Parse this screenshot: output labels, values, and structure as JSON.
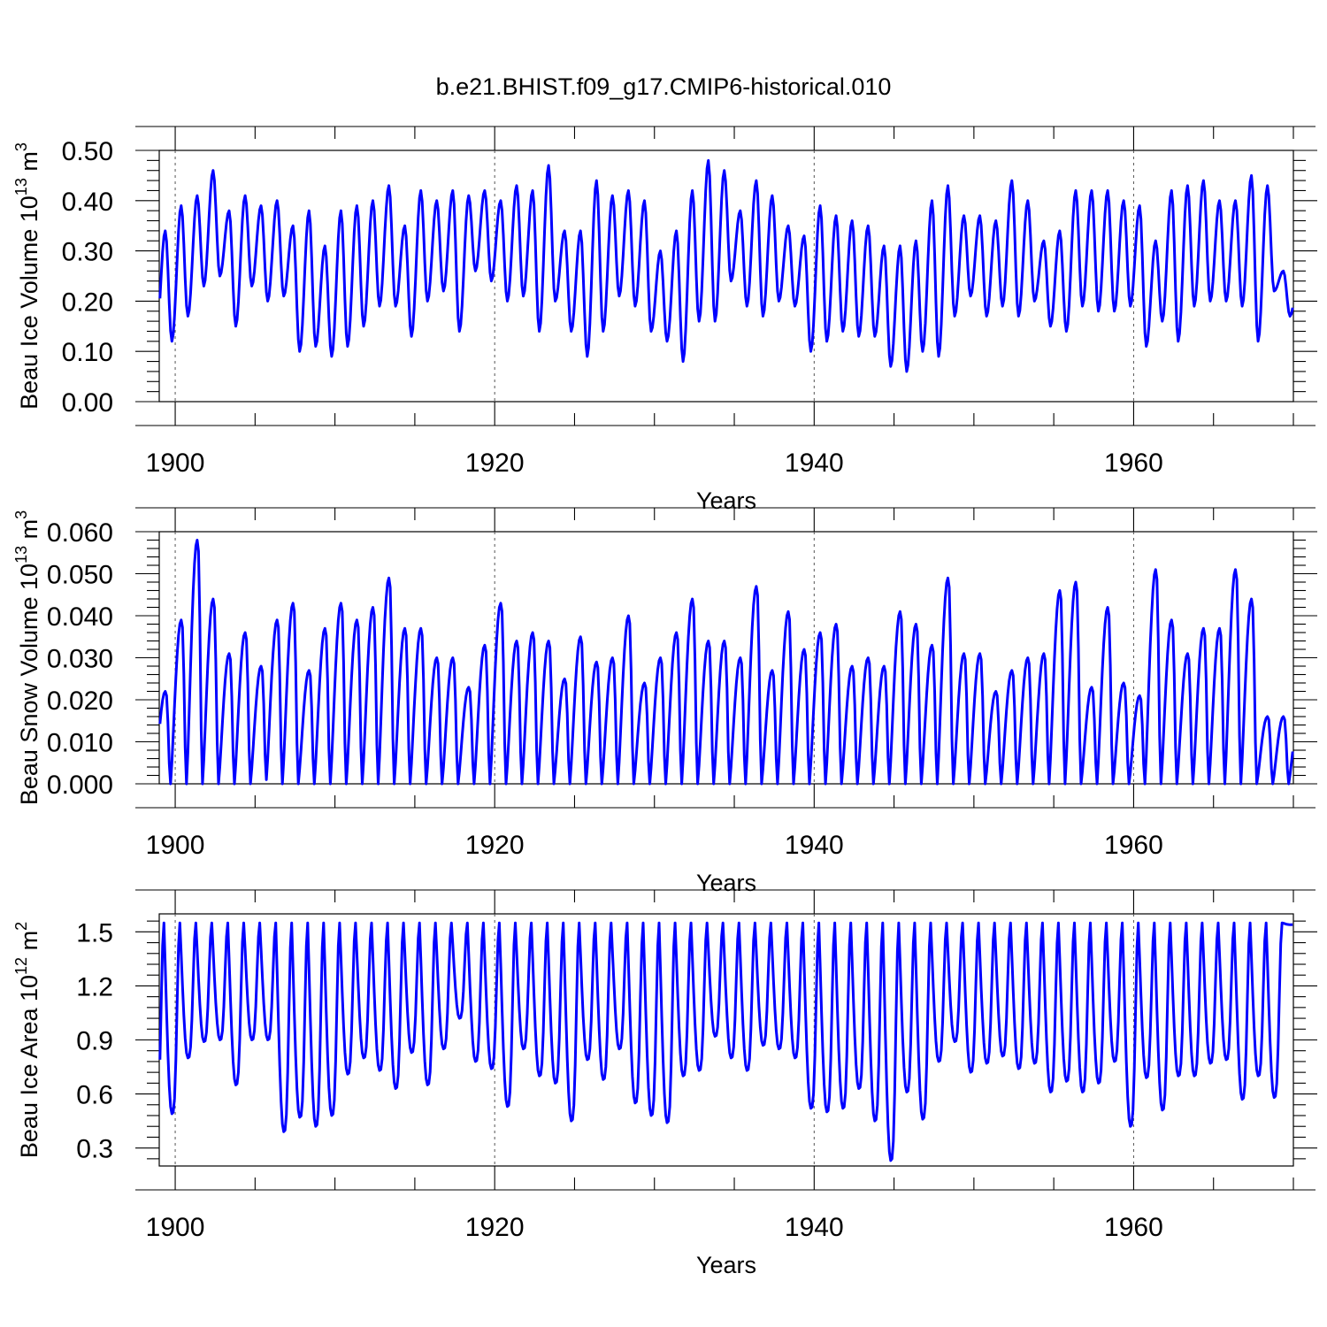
{
  "title": "b.e21.BHIST.f09_g17.CMIP6-historical.010",
  "chart_data": [
    {
      "type": "line",
      "name": "ice-volume",
      "ylabel": "Beau Ice Volume 10",
      "ylabel_exp": "13",
      "ylabel_unit": "m",
      "ylabel_unit_exp": "3",
      "xlabel": "Years",
      "xlim": [
        1899.0,
        1970.0
      ],
      "ylim": [
        0.0,
        0.5
      ],
      "xticks": [
        "1900",
        "1920",
        "1940",
        "1960"
      ],
      "yticks": [
        "0.00",
        "0.10",
        "0.20",
        "0.30",
        "0.40",
        "0.50"
      ],
      "series": [
        {
          "name": "Beau Ice Volume",
          "color": "#0000ff",
          "seasonal": {
            "max_month": 4,
            "min_month": 9,
            "shape": 1.0
          },
          "yearly_min": [
            0.12,
            0.17,
            0.23,
            0.25,
            0.15,
            0.23,
            0.2,
            0.21,
            0.1,
            0.11,
            0.09,
            0.11,
            0.15,
            0.19,
            0.19,
            0.13,
            0.2,
            0.22,
            0.14,
            0.26,
            0.24,
            0.2,
            0.21,
            0.14,
            0.2,
            0.14,
            0.09,
            0.14,
            0.21,
            0.19,
            0.14,
            0.12,
            0.08,
            0.16,
            0.16,
            0.24,
            0.19,
            0.17,
            0.2,
            0.19,
            0.1,
            0.12,
            0.14,
            0.13,
            0.13,
            0.07,
            0.06,
            0.1,
            0.09,
            0.17,
            0.21,
            0.17,
            0.19,
            0.17,
            0.2,
            0.15,
            0.14,
            0.19,
            0.18,
            0.18,
            0.19,
            0.11,
            0.16,
            0.12,
            0.19,
            0.2,
            0.2,
            0.19,
            0.12,
            0.22,
            0.17
          ],
          "yearly_max": [
            0.34,
            0.39,
            0.41,
            0.46,
            0.38,
            0.41,
            0.39,
            0.4,
            0.35,
            0.38,
            0.31,
            0.38,
            0.39,
            0.4,
            0.43,
            0.35,
            0.42,
            0.4,
            0.42,
            0.41,
            0.42,
            0.4,
            0.43,
            0.42,
            0.47,
            0.34,
            0.34,
            0.44,
            0.41,
            0.42,
            0.4,
            0.3,
            0.34,
            0.42,
            0.48,
            0.46,
            0.38,
            0.44,
            0.41,
            0.35,
            0.33,
            0.39,
            0.37,
            0.36,
            0.35,
            0.31,
            0.31,
            0.32,
            0.4,
            0.43,
            0.37,
            0.37,
            0.36,
            0.44,
            0.4,
            0.32,
            0.34,
            0.42,
            0.42,
            0.42,
            0.4,
            0.39,
            0.32,
            0.42,
            0.43,
            0.44,
            0.4,
            0.4,
            0.45,
            0.43,
            0.26
          ]
        }
      ]
    },
    {
      "type": "line",
      "name": "snow-volume",
      "ylabel": "Beau Snow Volume 10",
      "ylabel_exp": "13",
      "ylabel_unit": "m",
      "ylabel_unit_exp": "3",
      "xlabel": "Years",
      "xlim": [
        1899.0,
        1970.0
      ],
      "ylim": [
        0.0,
        0.06
      ],
      "xticks": [
        "1900",
        "1920",
        "1940",
        "1960"
      ],
      "yticks": [
        "0.000",
        "0.010",
        "0.020",
        "0.030",
        "0.040",
        "0.050",
        "0.060"
      ],
      "series": [
        {
          "name": "Beau Snow Volume",
          "color": "#0000ff",
          "seasonal": {
            "max_month": 4,
            "min_month": 8,
            "shape": 1.6
          },
          "yearly_min": [
            0.0,
            0.0,
            0.0,
            0.0,
            0.0,
            0.0,
            0.001,
            0.0,
            0.0,
            0.0,
            0.0,
            0.0,
            0.0,
            0.0,
            0.0,
            0.0,
            0.0,
            0.0,
            0.0,
            0.0,
            0.0,
            0.0,
            0.0,
            0.0,
            0.0,
            0.0,
            0.0,
            0.0,
            0.0,
            0.0,
            0.0,
            0.0,
            0.0,
            0.0,
            0.0,
            0.0,
            0.0,
            0.0,
            0.0,
            0.0,
            0.0,
            0.0,
            0.0,
            0.0,
            0.0,
            0.0,
            0.0,
            0.0,
            0.0,
            0.0,
            0.0,
            0.0,
            0.0,
            0.0,
            0.0,
            0.0,
            0.0,
            0.0,
            0.0,
            0.0,
            0.0,
            0.0,
            0.0,
            0.0,
            0.0,
            0.0,
            0.0,
            0.0,
            0.0,
            0.0,
            0.0
          ],
          "yearly_max": [
            0.022,
            0.039,
            0.058,
            0.044,
            0.031,
            0.036,
            0.028,
            0.039,
            0.043,
            0.027,
            0.037,
            0.043,
            0.039,
            0.042,
            0.049,
            0.037,
            0.037,
            0.03,
            0.03,
            0.023,
            0.033,
            0.043,
            0.034,
            0.036,
            0.034,
            0.025,
            0.035,
            0.029,
            0.03,
            0.04,
            0.024,
            0.03,
            0.036,
            0.044,
            0.034,
            0.034,
            0.03,
            0.047,
            0.027,
            0.041,
            0.032,
            0.036,
            0.038,
            0.028,
            0.03,
            0.028,
            0.041,
            0.038,
            0.033,
            0.049,
            0.031,
            0.031,
            0.022,
            0.027,
            0.03,
            0.031,
            0.046,
            0.048,
            0.023,
            0.042,
            0.024,
            0.021,
            0.051,
            0.039,
            0.031,
            0.037,
            0.037,
            0.051,
            0.044,
            0.016,
            0.016
          ]
        }
      ]
    },
    {
      "type": "line",
      "name": "ice-area",
      "ylabel": "Beau Ice Area 10",
      "ylabel_exp": "12",
      "ylabel_unit": "m",
      "ylabel_unit_exp": "2",
      "xlabel": "Years",
      "xlim": [
        1899.0,
        1970.0
      ],
      "ylim": [
        0.2,
        1.6
      ],
      "xticks": [
        "1900",
        "1920",
        "1940",
        "1960"
      ],
      "yticks": [
        "0.3",
        "0.6",
        "0.9",
        "1.2",
        "1.5"
      ],
      "series": [
        {
          "name": "Beau Ice Area",
          "color": "#0000ff",
          "seasonal": {
            "max_month": 3,
            "min_month": 9,
            "shape": 0.55
          },
          "yearly_min": [
            0.49,
            0.8,
            0.89,
            0.9,
            0.65,
            0.9,
            0.9,
            0.39,
            0.47,
            0.42,
            0.48,
            0.71,
            0.8,
            0.73,
            0.63,
            0.83,
            0.65,
            0.85,
            1.02,
            0.78,
            0.74,
            0.53,
            0.85,
            0.7,
            0.66,
            0.45,
            0.79,
            0.68,
            0.85,
            0.55,
            0.48,
            0.44,
            0.7,
            0.73,
            0.92,
            0.8,
            0.73,
            0.87,
            0.85,
            0.8,
            0.52,
            0.5,
            0.52,
            0.63,
            0.45,
            0.23,
            0.61,
            0.46,
            0.78,
            0.89,
            0.72,
            0.77,
            0.81,
            0.74,
            0.77,
            0.61,
            0.67,
            0.61,
            0.66,
            0.78,
            0.42,
            0.69,
            0.51,
            0.7,
            0.7,
            0.77,
            0.79,
            0.57,
            0.7,
            0.58,
            1.54
          ],
          "yearly_max": [
            1.55,
            1.55,
            1.55,
            1.55,
            1.55,
            1.55,
            1.55,
            1.55,
            1.55,
            1.55,
            1.55,
            1.55,
            1.55,
            1.55,
            1.55,
            1.55,
            1.55,
            1.55,
            1.55,
            1.55,
            1.55,
            1.55,
            1.55,
            1.55,
            1.55,
            1.55,
            1.55,
            1.55,
            1.55,
            1.55,
            1.55,
            1.55,
            1.55,
            1.55,
            1.55,
            1.55,
            1.55,
            1.55,
            1.55,
            1.55,
            1.55,
            1.55,
            1.55,
            1.55,
            1.55,
            1.55,
            1.55,
            1.55,
            1.55,
            1.55,
            1.55,
            1.55,
            1.55,
            1.55,
            1.55,
            1.55,
            1.55,
            1.55,
            1.55,
            1.55,
            1.55,
            1.55,
            1.55,
            1.55,
            1.55,
            1.55,
            1.55,
            1.55,
            1.55,
            1.55,
            1.55
          ]
        }
      ]
    }
  ]
}
